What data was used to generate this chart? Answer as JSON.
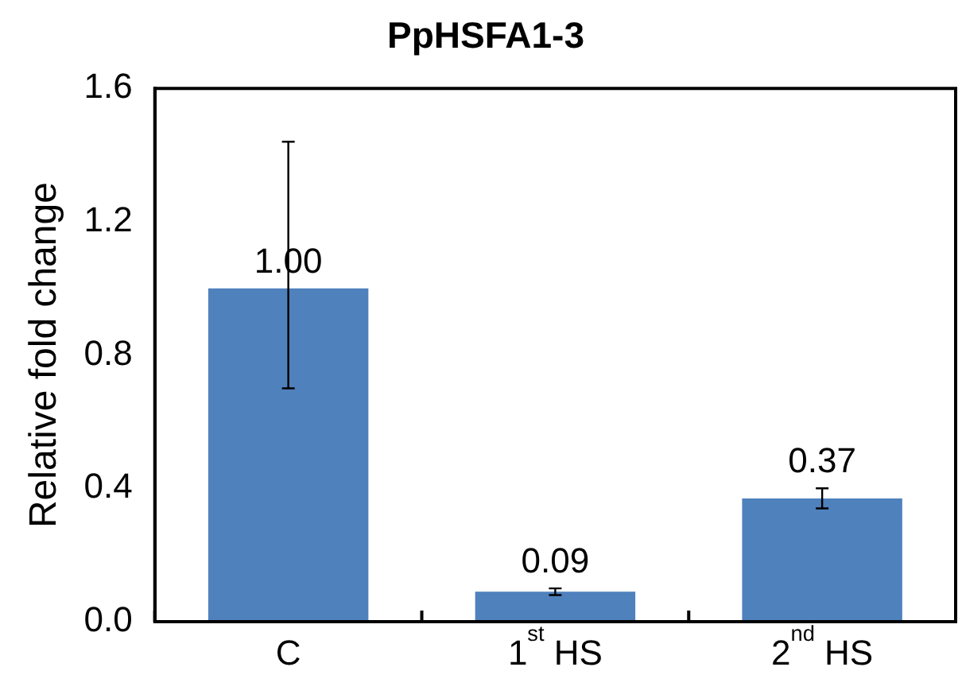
{
  "chart_data": {
    "type": "bar",
    "title": "PpHSFA1-3",
    "ylabel": "Relative fold change",
    "categories": [
      "C",
      "1$^{st}$ HS",
      "2$^{nd}$ HS"
    ],
    "values": [
      1.0,
      0.09,
      0.37
    ],
    "errors": [
      [
        0.7,
        1.44
      ],
      [
        0.08,
        0.1
      ],
      [
        0.34,
        0.4
      ]
    ],
    "color": "#4f81bd",
    "ylim": [
      0,
      1.6
    ],
    "yticks": [
      {
        "value": 0,
        "label": "0.0"
      },
      {
        "value": 0.4,
        "label": "0.4"
      },
      {
        "value": 0.8,
        "label": "0.8"
      },
      {
        "value": 1.2,
        "label": "1.2"
      },
      {
        "value": 1.6,
        "label": "1.6"
      }
    ],
    "value_labels": [
      "1.00",
      "0.09",
      "0.37"
    ],
    "grid": false,
    "legend": false
  }
}
